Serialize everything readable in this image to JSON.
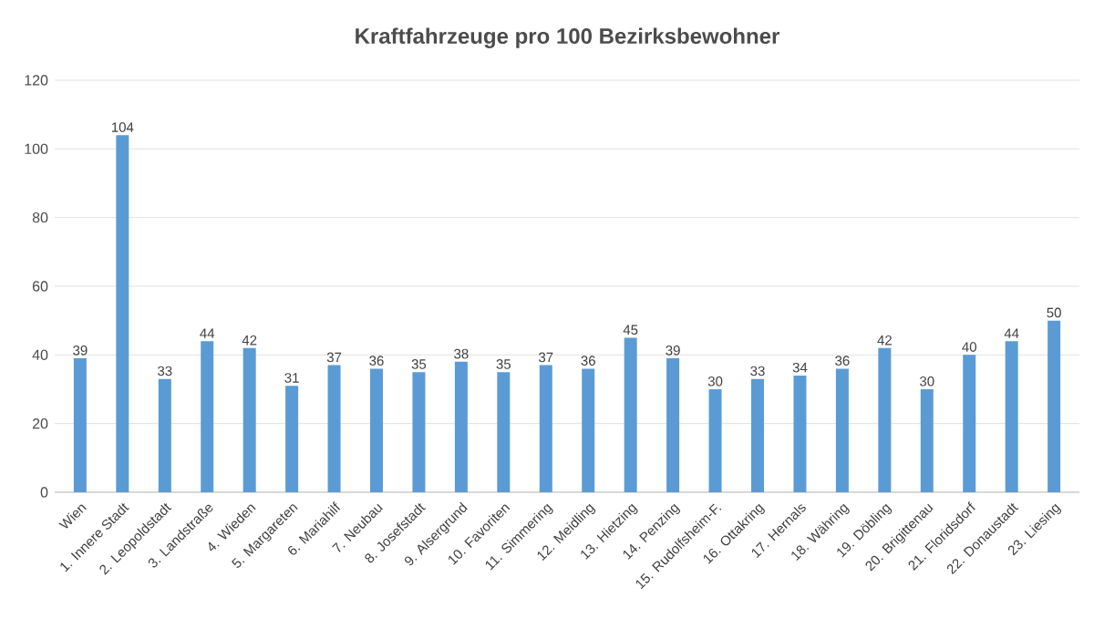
{
  "chart_data": {
    "type": "bar",
    "title": "Kraftfahrzeuge pro 100 Bezirksbewohner",
    "categories": [
      "Wien",
      "1. Innere Stadt",
      "2. Leopoldstadt",
      "3. Landstraße",
      "4. Wieden",
      "5. Margareten",
      "6. Mariahilf",
      "7. Neubau",
      "8. Josefstadt",
      "9. Alsergrund",
      "10. Favoriten",
      "11. Simmering",
      "12. Meidling",
      "13. Hietzing",
      "14. Penzing",
      "15. Rudolfsheim-F.",
      "16. Ottakring",
      "17. Hernals",
      "18. Währing",
      "19. Döbling",
      "20. Brigittenau",
      "21. Floridsdorf",
      "22. Donaustadt",
      "23. Liesing"
    ],
    "values": [
      39,
      104,
      33,
      44,
      42,
      31,
      37,
      36,
      35,
      38,
      35,
      37,
      36,
      45,
      39,
      30,
      33,
      34,
      36,
      42,
      30,
      40,
      44,
      50
    ],
    "color": "#5b9bd5",
    "ylim": [
      0,
      120
    ],
    "yticks": [
      0,
      20,
      40,
      60,
      80,
      100,
      120
    ],
    "grid": "y",
    "data_labels": true
  }
}
